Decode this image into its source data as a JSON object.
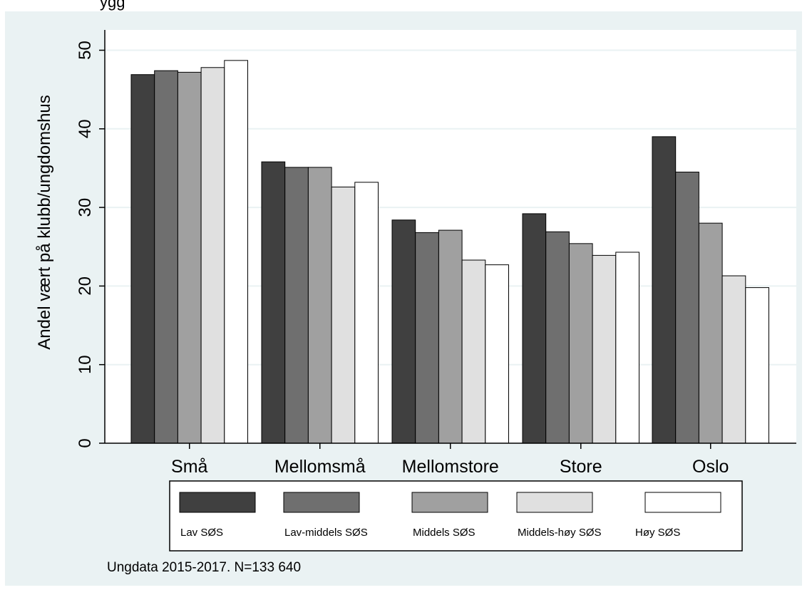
{
  "chart_data": {
    "type": "bar",
    "title": "",
    "xlabel": "",
    "ylabel": "Andel vært på klubb/ungdomshus",
    "ylim": [
      0,
      52
    ],
    "yticks": [
      0,
      10,
      20,
      30,
      40,
      50
    ],
    "grid": true,
    "legend_position": "bottom",
    "categories": [
      "Små",
      "Mellomsmå",
      "Mellomstore",
      "Store",
      "Oslo"
    ],
    "series": [
      {
        "name": "Lav SØS",
        "color": "#404040",
        "values": [
          46.9,
          35.8,
          28.4,
          29.2,
          39.0
        ]
      },
      {
        "name": "Lav-middels SØS",
        "color": "#6f6f6f",
        "values": [
          47.4,
          35.1,
          26.8,
          26.9,
          34.5
        ]
      },
      {
        "name": "Middels SØS",
        "color": "#a0a0a0",
        "values": [
          47.2,
          35.1,
          27.1,
          25.4,
          28.0
        ]
      },
      {
        "name": "Middels-høy SØS",
        "color": "#e0e0e0",
        "values": [
          47.8,
          32.6,
          23.3,
          23.9,
          21.3
        ]
      },
      {
        "name": "Høy SØS",
        "color": "#ffffff",
        "values": [
          48.7,
          33.2,
          22.7,
          24.3,
          19.8
        ]
      }
    ],
    "note": "Ungdata 2015-2017. N=133 640"
  },
  "colors": {
    "panel_background": "#eaf2f3",
    "plot_background": "#ffffff",
    "gridline": "#eaf2f3"
  },
  "top_cut_text": "ygg"
}
